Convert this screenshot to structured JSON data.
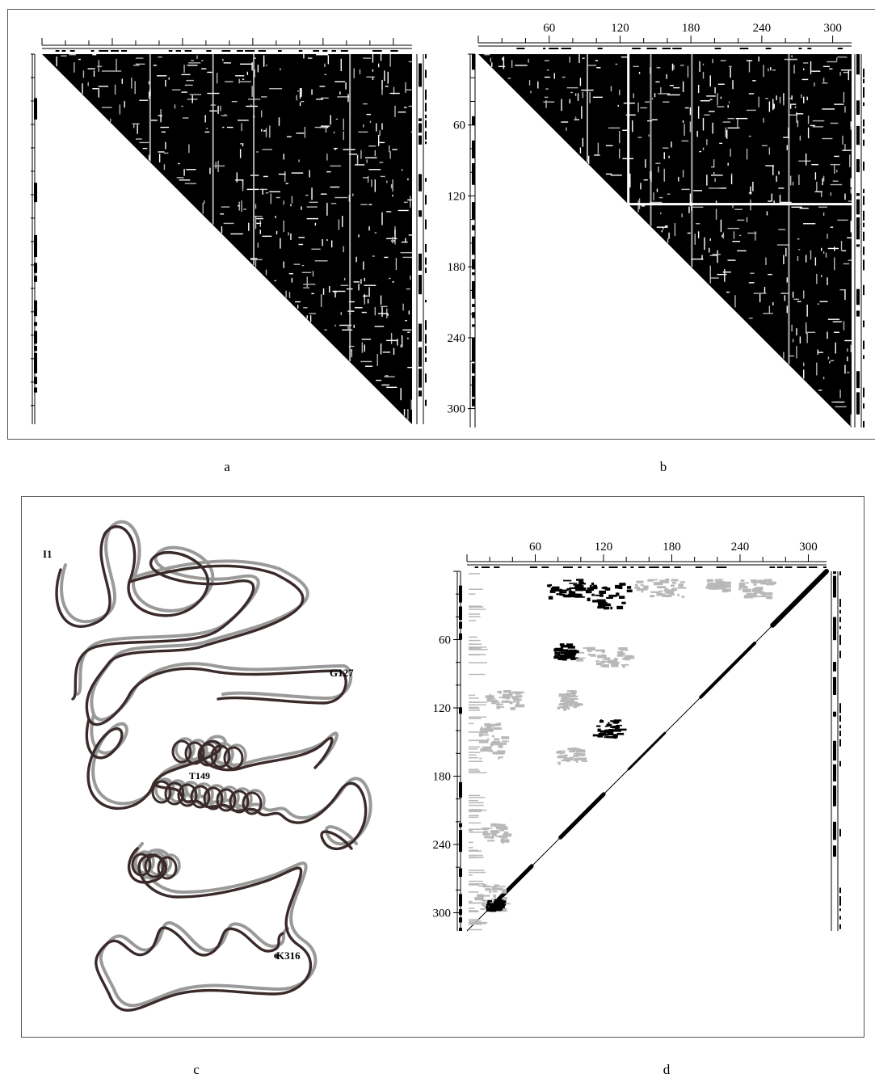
{
  "figure": {
    "captions": {
      "a": "a",
      "b": "b",
      "c": "c",
      "d": "d"
    },
    "panel_b": {
      "top_ticks": [
        "60",
        "120",
        "180",
        "240",
        "300"
      ],
      "left_ticks": [
        "60",
        "120",
        "180",
        "240",
        "300"
      ]
    },
    "panel_c": {
      "labels": {
        "start": "I1",
        "g127": "G127",
        "t149": "T149",
        "end": "K316"
      },
      "colors": {
        "chain_primary": "#3a2a2a",
        "chain_secondary": "#9a9a9a"
      }
    },
    "panel_d": {
      "top_ticks": [
        "60",
        "120",
        "180",
        "240",
        "300"
      ],
      "left_ticks": [
        "60",
        "120",
        "180",
        "240",
        "300"
      ]
    }
  },
  "chart_data": [
    {
      "type": "heatmap",
      "id": "a",
      "title": "",
      "xlabel": "",
      "ylabel": "",
      "residue_range": [
        1,
        316
      ],
      "triangle": "upper",
      "colors": {
        "dense": "#000000",
        "sparse": "#b8b8b8",
        "empty": "#ffffff"
      }
    },
    {
      "type": "heatmap",
      "id": "b",
      "title": "",
      "xlabel": "",
      "ylabel": "",
      "residue_range": [
        1,
        316
      ],
      "x_ticks": [
        60,
        120,
        180,
        240,
        300
      ],
      "y_ticks": [
        60,
        120,
        180,
        240,
        300
      ],
      "triangle": "upper",
      "domain_boundary": 127,
      "colors": {
        "dense": "#000000",
        "sparse": "#b8b8b8",
        "empty": "#ffffff"
      }
    },
    {
      "type": "heatmap",
      "id": "d",
      "title": "",
      "xlabel": "",
      "ylabel": "",
      "residue_range": [
        1,
        316
      ],
      "x_ticks": [
        60,
        120,
        180,
        240,
        300
      ],
      "y_ticks": [
        60,
        120,
        180,
        240,
        300
      ],
      "triangle": "lower",
      "colors": {
        "dense": "#000000",
        "sparse": "#b8b8b8",
        "empty": "#ffffff"
      }
    }
  ]
}
